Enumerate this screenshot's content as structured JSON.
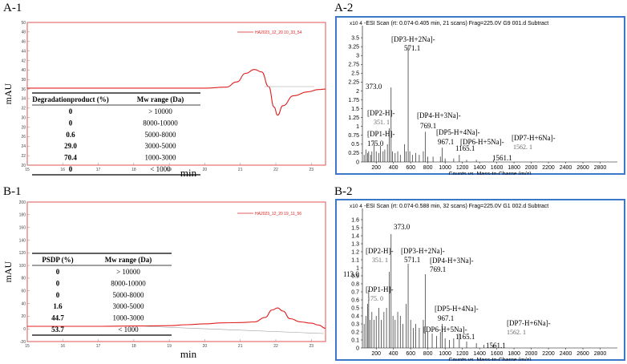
{
  "panels": {
    "a1": "A-1",
    "a2": "A-2",
    "b1": "B-1",
    "b2": "B-2"
  },
  "colors": {
    "hplc_frame": "#e05050",
    "hplc_trace": "#e02020",
    "ms_frame": "#3c78c8",
    "ms_trace": "#222222"
  },
  "chart_data": [
    {
      "id": "A-1",
      "type": "line",
      "title": "",
      "xlabel": "min",
      "ylabel": "mAU",
      "xlim": [
        15,
        23.4
      ],
      "ylim": [
        20,
        50
      ],
      "x_ticks": [
        "15",
        "16",
        "17",
        "18",
        "19",
        "20",
        "21",
        "22",
        "23"
      ],
      "y_ticks": [
        "20",
        "22",
        "24",
        "26",
        "28",
        "30",
        "32",
        "34",
        "36",
        "38",
        "40",
        "42",
        "44",
        "46",
        "48",
        "50"
      ],
      "legend": "HA2023_12_20 10_33_54",
      "series": [
        {
          "name": "HA2023_12_20 10_33_54",
          "x": [
            15,
            16,
            17,
            18,
            19,
            20,
            20.6,
            20.9,
            21.15,
            21.4,
            21.6,
            21.8,
            21.95,
            22.05,
            22.2,
            22.5,
            22.9,
            23.2,
            23.4
          ],
          "y": [
            36.2,
            36.2,
            36.2,
            36.2,
            36.2,
            36.2,
            36.4,
            37.5,
            39.3,
            40.1,
            39.6,
            36.5,
            32.2,
            30.5,
            32.5,
            34.6,
            35.4,
            35.9,
            36.0
          ]
        }
      ],
      "table": {
        "headers": [
          "Degradationproduct (%)",
          "Mw range (Da)"
        ],
        "rows": [
          [
            "0",
            "> 10000"
          ],
          [
            "0",
            "8000-10000"
          ],
          [
            "0.6",
            "5000-8000"
          ],
          [
            "29.0",
            "3000-5000"
          ],
          [
            "70.4",
            "1000-3000"
          ],
          [
            "0",
            "< 1000"
          ]
        ]
      }
    },
    {
      "id": "A-2",
      "type": "bar",
      "title": "-ESI Scan (rt: 0.074-0.405 min, 21 scans) Frag=225.0V G9  001.d  Subtract",
      "xlabel": "Counts vs. Mass-to-Charge (m/z)",
      "ylabel": "",
      "y_multiplier": "x10 4",
      "xlim": [
        40,
        3000
      ],
      "ylim": [
        0,
        3.75
      ],
      "x_ticks": [
        "200",
        "400",
        "600",
        "800",
        "1000",
        "1200",
        "1400",
        "1600",
        "1800",
        "2000",
        "2200",
        "2400",
        "2600",
        "2800"
      ],
      "y_ticks": [
        "0",
        "0.25",
        "0.5",
        "0.75",
        "1",
        "1.25",
        "1.5",
        "1.75",
        "2",
        "2.25",
        "2.5",
        "2.75",
        "3",
        "3.25",
        "3.5"
      ],
      "peaks": [
        {
          "mz": 60,
          "v": 0.2
        },
        {
          "mz": 80,
          "v": 0.35
        },
        {
          "mz": 100,
          "v": 0.25
        },
        {
          "mz": 113,
          "v": 0.3
        },
        {
          "mz": 135,
          "v": 0.2
        },
        {
          "mz": 150,
          "v": 0.3
        },
        {
          "mz": 175,
          "v": 0.55
        },
        {
          "mz": 200,
          "v": 0.3
        },
        {
          "mz": 230,
          "v": 0.25
        },
        {
          "mz": 250,
          "v": 0.45
        },
        {
          "mz": 280,
          "v": 0.3
        },
        {
          "mz": 300,
          "v": 0.35
        },
        {
          "mz": 330,
          "v": 0.5
        },
        {
          "mz": 351,
          "v": 0.95
        },
        {
          "mz": 373,
          "v": 2.1
        },
        {
          "mz": 390,
          "v": 0.3
        },
        {
          "mz": 420,
          "v": 0.25
        },
        {
          "mz": 450,
          "v": 0.3
        },
        {
          "mz": 480,
          "v": 0.2
        },
        {
          "mz": 530,
          "v": 0.5
        },
        {
          "mz": 549,
          "v": 0.3
        },
        {
          "mz": 571,
          "v": 3.25
        },
        {
          "mz": 590,
          "v": 0.3
        },
        {
          "mz": 620,
          "v": 0.2
        },
        {
          "mz": 660,
          "v": 0.25
        },
        {
          "mz": 700,
          "v": 0.2
        },
        {
          "mz": 747,
          "v": 0.3
        },
        {
          "mz": 769,
          "v": 0.85
        },
        {
          "mz": 800,
          "v": 0.15
        },
        {
          "mz": 860,
          "v": 0.15
        },
        {
          "mz": 945,
          "v": 0.15
        },
        {
          "mz": 967,
          "v": 0.4
        },
        {
          "mz": 1000,
          "v": 0.1
        },
        {
          "mz": 1100,
          "v": 0.1
        },
        {
          "mz": 1165,
          "v": 0.2
        },
        {
          "mz": 1250,
          "v": 0.06
        },
        {
          "mz": 1363,
          "v": 0.06
        },
        {
          "mz": 1561,
          "v": 0.05
        }
      ],
      "labels": [
        {
          "text": "[DP3-H+2Na]-",
          "mz": 571
        },
        {
          "text": "571.1",
          "mz": 571
        },
        {
          "text": "373.0",
          "mz": 373
        },
        {
          "text": "[DP4-H+3Na]-",
          "mz": 769
        },
        {
          "text": "769.1",
          "mz": 769
        },
        {
          "text": "[DP2-H]-",
          "mz": 351
        },
        {
          "text": "351. 1",
          "mz": 351
        },
        {
          "text": "[DP1-H]-",
          "mz": 175
        },
        {
          "text": "175.0",
          "mz": 175
        },
        {
          "text": "967.1",
          "mz": 967
        },
        {
          "text": "[DP5-H+4Na]-",
          "mz": 967
        },
        {
          "text": "[DP6-H+5Na]-",
          "mz": 1165
        },
        {
          "text": "1165.1",
          "mz": 1165
        },
        {
          "text": "[DP7-H+6Na]-",
          "mz": 1562
        },
        {
          "text": "1562. 1",
          "mz": 1562
        },
        {
          "text": "1561.1",
          "mz": 1561
        }
      ]
    },
    {
      "id": "B-1",
      "type": "line",
      "title": "",
      "xlabel": "min",
      "ylabel": "mAU",
      "xlim": [
        15,
        23.4
      ],
      "ylim": [
        -20,
        200
      ],
      "x_ticks": [
        "15",
        "16",
        "17",
        "18",
        "19",
        "20",
        "21",
        "22",
        "23"
      ],
      "y_ticks": [
        "-20",
        "0",
        "20",
        "40",
        "60",
        "80",
        "100",
        "120",
        "140",
        "160",
        "180",
        "200"
      ],
      "legend": "HA2023_12_20 19_11_56",
      "series": [
        {
          "name": "HA2023_12_20 19_11_56",
          "x": [
            15,
            16,
            17,
            18,
            19,
            19.5,
            20,
            20.5,
            21,
            21.4,
            21.7,
            21.9,
            22.05,
            22.2,
            22.4,
            22.7,
            23.0,
            23.2,
            23.4
          ],
          "y": [
            4,
            4,
            4,
            4.5,
            5,
            6.5,
            8,
            9.5,
            10,
            11,
            18,
            30,
            33,
            28,
            16,
            11,
            9,
            6,
            1
          ]
        }
      ],
      "table": {
        "headers": [
          "PSDP (%)",
          "Mw range (Da)"
        ],
        "rows": [
          [
            "0",
            "> 10000"
          ],
          [
            "0",
            "8000-10000"
          ],
          [
            "0",
            "5000-8000"
          ],
          [
            "1.6",
            "3000-5000"
          ],
          [
            "44.7",
            "1000-3000"
          ],
          [
            "53.7",
            "< 1000"
          ]
        ]
      }
    },
    {
      "id": "B-2",
      "type": "bar",
      "title": "-ESI Scan (rt: 0.074-0.588 min, 32 scans) Frag=225.0V G1  002.d  Subtract",
      "xlabel": "Counts vs. Mass-to-Charge (m/z)",
      "ylabel": "",
      "y_multiplier": "x10 4",
      "xlim": [
        40,
        3000
      ],
      "ylim": [
        0,
        1.7
      ],
      "x_ticks": [
        "200",
        "400",
        "600",
        "800",
        "1000",
        "1200",
        "1400",
        "1600",
        "1800",
        "2000",
        "2200",
        "2400",
        "2600",
        "2800"
      ],
      "y_ticks": [
        "0",
        "0.1",
        "0.2",
        "0.3",
        "0.4",
        "0.5",
        "0.6",
        "0.7",
        "0.8",
        "0.9",
        "1",
        "1.1",
        "1.2",
        "1.3",
        "1.4",
        "1.5",
        "1.6"
      ],
      "peaks": [
        {
          "mz": 60,
          "v": 0.3
        },
        {
          "mz": 80,
          "v": 0.4
        },
        {
          "mz": 100,
          "v": 0.55
        },
        {
          "mz": 113,
          "v": 0.72
        },
        {
          "mz": 130,
          "v": 0.35
        },
        {
          "mz": 150,
          "v": 0.45
        },
        {
          "mz": 175,
          "v": 0.35
        },
        {
          "mz": 200,
          "v": 0.4
        },
        {
          "mz": 230,
          "v": 0.5
        },
        {
          "mz": 260,
          "v": 0.35
        },
        {
          "mz": 290,
          "v": 0.45
        },
        {
          "mz": 320,
          "v": 0.5
        },
        {
          "mz": 351,
          "v": 0.95
        },
        {
          "mz": 373,
          "v": 1.42
        },
        {
          "mz": 395,
          "v": 0.4
        },
        {
          "mz": 420,
          "v": 0.35
        },
        {
          "mz": 450,
          "v": 0.45
        },
        {
          "mz": 480,
          "v": 0.4
        },
        {
          "mz": 510,
          "v": 0.3
        },
        {
          "mz": 549,
          "v": 0.55
        },
        {
          "mz": 571,
          "v": 1.05
        },
        {
          "mz": 600,
          "v": 0.35
        },
        {
          "mz": 630,
          "v": 0.25
        },
        {
          "mz": 660,
          "v": 0.3
        },
        {
          "mz": 700,
          "v": 0.25
        },
        {
          "mz": 747,
          "v": 0.35
        },
        {
          "mz": 769,
          "v": 0.92
        },
        {
          "mz": 800,
          "v": 0.2
        },
        {
          "mz": 850,
          "v": 0.18
        },
        {
          "mz": 900,
          "v": 0.15
        },
        {
          "mz": 945,
          "v": 0.2
        },
        {
          "mz": 967,
          "v": 0.3
        },
        {
          "mz": 1000,
          "v": 0.12
        },
        {
          "mz": 1050,
          "v": 0.1
        },
        {
          "mz": 1100,
          "v": 0.12
        },
        {
          "mz": 1165,
          "v": 0.18
        },
        {
          "mz": 1250,
          "v": 0.08
        },
        {
          "mz": 1363,
          "v": 0.06
        },
        {
          "mz": 1450,
          "v": 0.04
        },
        {
          "mz": 1561,
          "v": 0.04
        }
      ],
      "labels": [
        {
          "text": "373.0",
          "mz": 373
        },
        {
          "text": "[DP2-H]-",
          "mz": 351
        },
        {
          "text": "351. 1",
          "mz": 351
        },
        {
          "text": "[DP3-H+2Na]-",
          "mz": 571
        },
        {
          "text": "571.1",
          "mz": 571
        },
        {
          "text": "[DP4-H+3Na]-",
          "mz": 769
        },
        {
          "text": "769.1",
          "mz": 769
        },
        {
          "text": "113.0",
          "mz": 113
        },
        {
          "text": "[DP1-H]-",
          "mz": 175
        },
        {
          "text": "175. 0",
          "mz": 175
        },
        {
          "text": "[DP5-H+4Na]-",
          "mz": 967
        },
        {
          "text": "967.1",
          "mz": 967
        },
        {
          "text": "[DP6-H+5Na]-",
          "mz": 1165
        },
        {
          "text": "1165.1",
          "mz": 1165
        },
        {
          "text": "[DP7-H+6Na]-",
          "mz": 1562
        },
        {
          "text": "1562. 1",
          "mz": 1562
        },
        {
          "text": "1561.1",
          "mz": 1561
        }
      ]
    }
  ]
}
